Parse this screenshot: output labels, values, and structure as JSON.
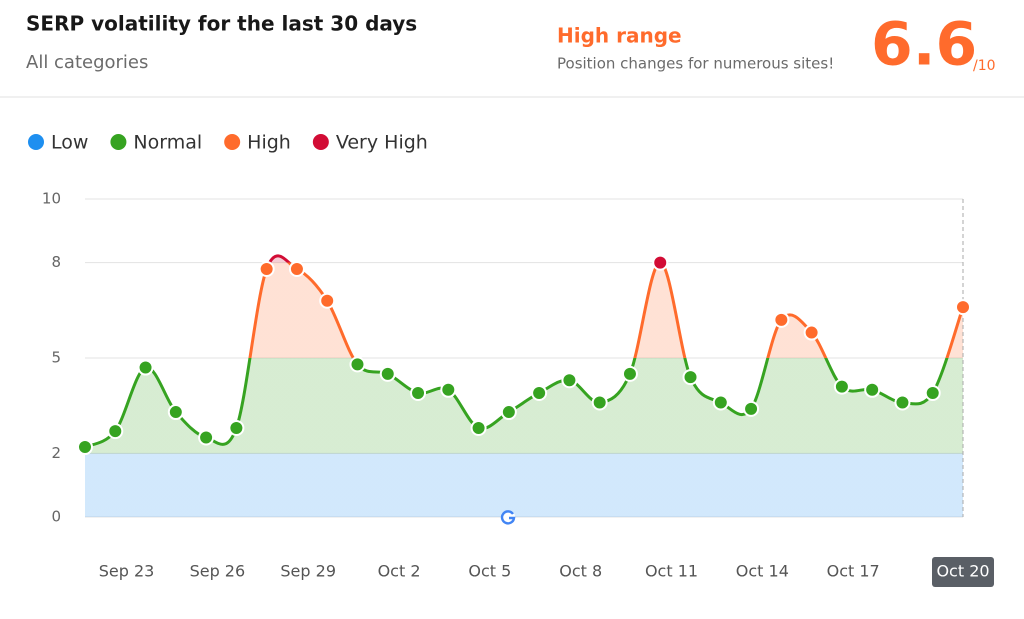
{
  "header": {
    "title": "SERP volatility for the last 30 days",
    "subtitle": "All categories",
    "range_title": "High range",
    "range_text": "Position changes for numerous sites!",
    "score": 6.6,
    "score_suffix": "/10"
  },
  "chart_data": {
    "type": "line",
    "categories": [
      "Sep 21",
      "Sep 22",
      "Sep 23",
      "Sep 24",
      "Sep 25",
      "Sep 26",
      "Sep 27",
      "Sep 28",
      "Sep 29",
      "Sep 30",
      "Oct 1",
      "Oct 2",
      "Oct 3",
      "Oct 4",
      "Oct 5",
      "Oct 6",
      "Oct 7",
      "Oct 8",
      "Oct 9",
      "Oct 10",
      "Oct 11",
      "Oct 12",
      "Oct 13",
      "Oct 14",
      "Oct 15",
      "Oct 16",
      "Oct 17",
      "Oct 18",
      "Oct 19",
      "Oct 20"
    ],
    "x_labels": [
      null,
      null,
      "Sep 23",
      null,
      null,
      "Sep 26",
      null,
      null,
      "Sep 29",
      null,
      null,
      "Oct 2",
      null,
      null,
      "Oct 5",
      null,
      null,
      "Oct 8",
      null,
      null,
      "Oct 11",
      null,
      null,
      "Oct 14",
      null,
      null,
      "Oct 17",
      null,
      null,
      "Oct 20"
    ],
    "values": [
      2.2,
      2.7,
      4.7,
      3.3,
      2.5,
      2.8,
      7.8,
      7.8,
      6.8,
      4.8,
      4.5,
      3.9,
      4.0,
      2.8,
      3.3,
      3.9,
      4.3,
      3.6,
      4.5,
      8.0,
      4.4,
      3.6,
      3.4,
      6.2,
      5.8,
      4.1,
      4.0,
      3.6,
      3.9,
      6.6
    ],
    "levels": [
      {
        "name": "Low",
        "color": "#1e8ff0",
        "from": 0,
        "to": 2
      },
      {
        "name": "Normal",
        "color": "#36a321",
        "from": 2,
        "to": 5
      },
      {
        "name": "High",
        "color": "#ff6b2c",
        "from": 5,
        "to": 8
      },
      {
        "name": "Very High",
        "color": "#d20c35",
        "from": 8,
        "to": 10
      }
    ],
    "ylim": [
      0,
      10
    ],
    "yticks": [
      0,
      2,
      5,
      8,
      10
    ],
    "grid": true,
    "selected": 29
  }
}
